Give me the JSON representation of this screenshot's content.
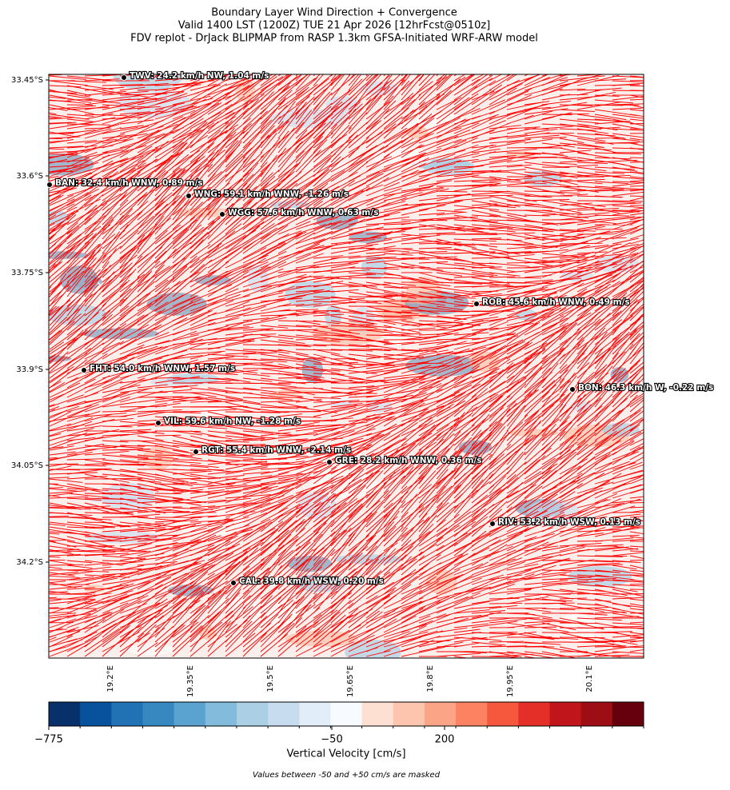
{
  "header": {
    "title": [
      "Boundary Layer Wind Direction + Convergence",
      "Valid 1400 LST (1200Z) TUE 21 Apr 2026 [12hrFcst@0510z]",
      "FDV replot - DrJack BLIPMAP from RASP 1.3km GFSA-Initiated WRF-ARW model"
    ]
  },
  "map": {
    "lat_ticks": [
      "33.45°S",
      "33.6°S",
      "33.75°S",
      "33.9°S",
      "34.05°S",
      "34.2°S"
    ],
    "lon_ticks": [
      "19.2°E",
      "19.35°E",
      "19.5°E",
      "19.65°E",
      "19.8°E",
      "19.95°E",
      "20.1°E"
    ],
    "stations": [
      {
        "label": "TWV: 24.2 km/h NW, 1.04 m/s"
      },
      {
        "label": "BAN: 32.4 km/h WNW, 0.89 m/s"
      },
      {
        "label": "WNG: 59.1 km/h WNW, -1.26 m/s"
      },
      {
        "label": "WGG: 57.6 km/h WNW, 0.63 m/s"
      },
      {
        "label": "ROB: 45.6 km/h WNW, 0.49 m/s"
      },
      {
        "label": "FHT: 54.0 km/h WNW, 1.57 m/s"
      },
      {
        "label": "BON: 46.3 km/h W, -0.22 m/s"
      },
      {
        "label": "VIL: 59.6 km/h NW, -1.28 m/s"
      },
      {
        "label": "RGT: 55.4 km/h WNW, -2.14 m/s"
      },
      {
        "label": "GRE: 28.2 km/h WNW, 0.36 m/s"
      },
      {
        "label": "RIV: 53.2 km/h WSW, 0.13 m/s"
      },
      {
        "label": "CAL: 39.8 km/h WSW, 0.20 m/s"
      }
    ]
  },
  "colorbar": {
    "ticks": [
      "−775",
      "−50",
      "200"
    ],
    "label": "Vertical Velocity [cm/s]",
    "note": "Values between -50 and +50 cm/s are masked"
  }
}
